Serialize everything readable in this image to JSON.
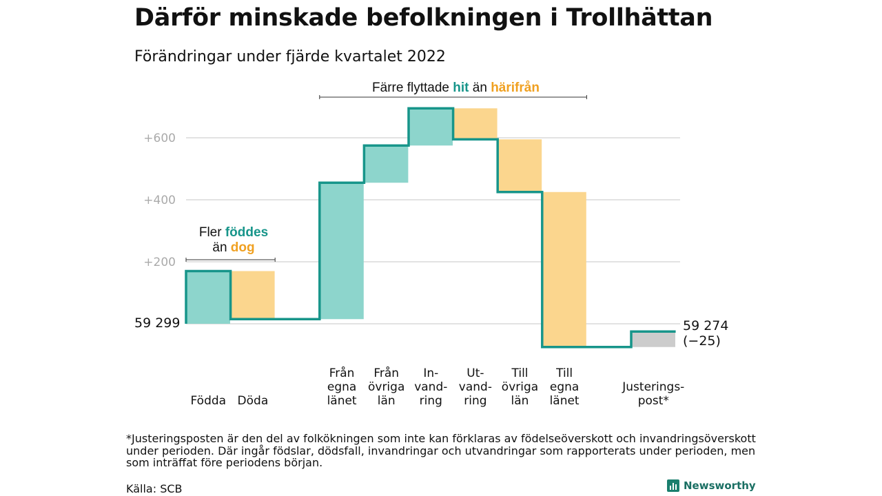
{
  "title": "Därför minskade befolkningen i Trollhättan",
  "subtitle": "Förändringar under fjärde kvartalet 2022",
  "colors": {
    "increase": "#8dd5cc",
    "decrease": "#fbd68e",
    "adjustment": "#cccccc",
    "line": "#17958a",
    "grid": "#d9d9d9"
  },
  "annotations": {
    "births": {
      "prefix": "Fler ",
      "highlight1": "föddes",
      "middle": "än ",
      "highlight2": "dog"
    },
    "moves": {
      "prefix": "Färre flyttade ",
      "highlight1": "hit",
      "middle": " än ",
      "highlight2": "härifrån"
    }
  },
  "start_label": "59 299",
  "end_label": {
    "value": "59 274",
    "change": "(−25)"
  },
  "footnote": "*Justeringsposten är den del av folkökningen som inte kan förklaras av födelseöverskott och invandringsöverskott under perioden. Där ingår födslar, dödsfall, invandringar och utvandringar som rapporterats under perioden, men som inträffat före periodens början.",
  "source": "Källa: SCB",
  "brand": "Newsworthy",
  "chart_data": {
    "type": "waterfall",
    "start_value": 59299,
    "end_value": 59274,
    "total_change": -25,
    "yticks": [
      {
        "value": 200,
        "label": "+200"
      },
      {
        "value": 400,
        "label": "+400"
      },
      {
        "value": 600,
        "label": "+600"
      }
    ],
    "ylim": [
      -90,
      710
    ],
    "steps": [
      {
        "label": [
          "Födda"
        ],
        "change": 170,
        "kind": "increase"
      },
      {
        "label": [
          "Döda"
        ],
        "change": -155,
        "kind": "decrease"
      },
      {
        "label": [],
        "change": 0,
        "kind": "gap"
      },
      {
        "label": [
          "Från",
          "egna",
          "länet"
        ],
        "change": 440,
        "kind": "increase"
      },
      {
        "label": [
          "Från",
          "övriga",
          "län"
        ],
        "change": 120,
        "kind": "increase"
      },
      {
        "label": [
          "In-",
          "vand-",
          "ring"
        ],
        "change": 120,
        "kind": "increase"
      },
      {
        "label": [
          "Ut-",
          "vand-",
          "ring"
        ],
        "change": -100,
        "kind": "decrease"
      },
      {
        "label": [
          "Till",
          "övriga",
          "län"
        ],
        "change": -170,
        "kind": "decrease"
      },
      {
        "label": [
          "Till",
          "egna",
          "länet"
        ],
        "change": -500,
        "kind": "decrease"
      },
      {
        "label": [],
        "change": 0,
        "kind": "gap"
      },
      {
        "label": [
          "Justerings-",
          "post*"
        ],
        "change": 50,
        "kind": "adjustment"
      }
    ]
  }
}
